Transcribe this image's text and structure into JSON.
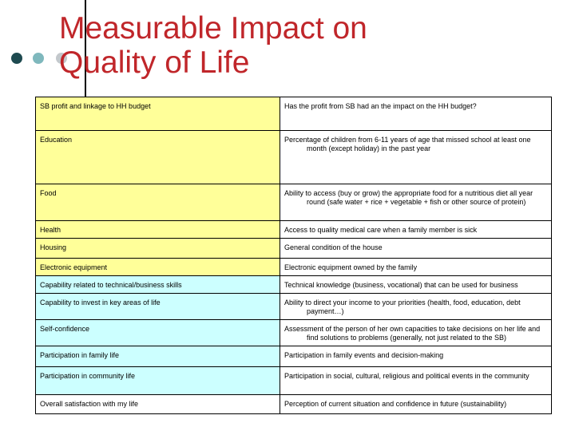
{
  "slide": {
    "title_lines": [
      "Measurable Impact on",
      "Quality of Life"
    ]
  },
  "colors": {
    "title": "#c0262a",
    "yellow_fill": "#ffff99",
    "cyan_fill": "#ccffff",
    "white_fill": "#ffffff",
    "bullet_dark": "#1e4a50",
    "bullet_mid": "#7fb8bd",
    "bullet_light": "#c3c8cc"
  },
  "rows": [
    {
      "dimension": "SB profit and linkage to HH budget",
      "indicator": "Has the profit from SB had an the impact on the HH budget?",
      "fill": "yellow"
    },
    {
      "dimension": "Education",
      "indicator": "Percentage of children from 6-11 years of age that missed school at least one month (except holiday) in the past year",
      "fill": "yellow"
    },
    {
      "dimension": "Food",
      "indicator": "Ability to access (buy or grow) the appropriate food for a nutritious diet all year round (safe water + rice + vegetable + fish or other source of protein)",
      "fill": "yellow"
    },
    {
      "dimension": "Health",
      "indicator": "Access to quality medical care when a family member is sick",
      "fill": "yellow"
    },
    {
      "dimension": "Housing",
      "indicator": "General condition of the house",
      "fill": "yellow"
    },
    {
      "dimension": "Electronic equipment",
      "indicator": "Electronic equipment owned by the family",
      "fill": "yellow"
    },
    {
      "dimension": "Capability related to technical/business skills",
      "indicator": "Technical knowledge (business, vocational) that can be used for business",
      "fill": "cyan"
    },
    {
      "dimension": "Capability to invest in key areas of life",
      "indicator": "Ability to direct your income to your priorities (health, food, education, debt payment…)",
      "fill": "cyan"
    },
    {
      "dimension": "Self-confidence",
      "indicator": "Assessment of the person of her own capacities to take decisions on her life and find solutions to problems (generally, not just related to the SB)",
      "fill": "cyan"
    },
    {
      "dimension": "Participation in family life",
      "indicator": "Participation in family events and decision-making",
      "fill": "cyan"
    },
    {
      "dimension": "Participation in community life",
      "indicator": "Participation in social, cultural, religious and political events in the community",
      "fill": "cyan"
    },
    {
      "dimension": "Overall satisfaction with my life",
      "indicator": "Perception of current situation and confidence in future (sustainability)",
      "fill": "white"
    }
  ]
}
